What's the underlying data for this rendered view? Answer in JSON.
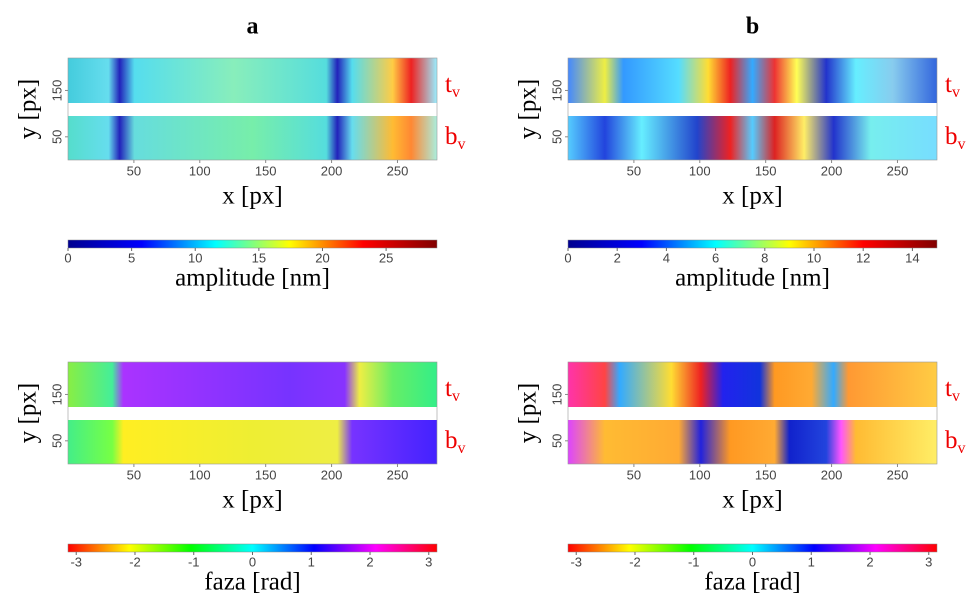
{
  "chart_data": [
    {
      "type": "heatmap",
      "title": "a",
      "xlabel": "x [px]",
      "ylabel": "y [px]",
      "xlim": [
        0,
        280
      ],
      "xticks": [
        50,
        100,
        150,
        200,
        250
      ],
      "ylim": [
        0,
        220
      ],
      "yticks": [
        50,
        150
      ],
      "band_labels": [
        {
          "text": "t",
          "sub": "v"
        },
        {
          "text": "b",
          "sub": "v"
        }
      ],
      "colorbar": {
        "label": "amplitude [nm]",
        "lim": [
          0,
          29
        ],
        "ticks": [
          0,
          5,
          10,
          15,
          20,
          25
        ],
        "colors": [
          "#00008f",
          "#0000ff",
          "#00ffff",
          "#ffff00",
          "#ff0000",
          "#800000"
        ]
      }
    },
    {
      "type": "heatmap",
      "title": "b",
      "xlabel": "x [px]",
      "ylabel": "y [px]",
      "xlim": [
        0,
        280
      ],
      "xticks": [
        50,
        100,
        150,
        200,
        250
      ],
      "ylim": [
        0,
        220
      ],
      "yticks": [
        50,
        150
      ],
      "band_labels": [
        {
          "text": "t",
          "sub": "v"
        },
        {
          "text": "b",
          "sub": "v"
        }
      ],
      "colorbar": {
        "label": "amplitude [nm]",
        "lim": [
          0,
          15
        ],
        "ticks": [
          0,
          2,
          4,
          6,
          8,
          10,
          12,
          14
        ],
        "colors": [
          "#00008f",
          "#0000ff",
          "#00ffff",
          "#ffff00",
          "#ff0000",
          "#800000"
        ]
      }
    },
    {
      "type": "heatmap",
      "xlabel": "x [px]",
      "ylabel": "y [px]",
      "xlim": [
        0,
        280
      ],
      "xticks": [
        50,
        100,
        150,
        200,
        250
      ],
      "ylim": [
        0,
        220
      ],
      "yticks": [
        50,
        150
      ],
      "band_labels": [
        {
          "text": "t",
          "sub": "v"
        },
        {
          "text": "b",
          "sub": "v"
        }
      ],
      "colorbar": {
        "label": "faza [rad]",
        "lim": [
          -3.14,
          3.14
        ],
        "ticks": [
          -3,
          -2,
          -1,
          0,
          1,
          2,
          3
        ],
        "colors": [
          "#ff0000",
          "#ffff00",
          "#00ff00",
          "#00ffff",
          "#0000ff",
          "#ff00ff",
          "#ff0000"
        ]
      }
    },
    {
      "type": "heatmap",
      "xlabel": "x [px]",
      "ylabel": "y [px]",
      "xlim": [
        0,
        280
      ],
      "xticks": [
        50,
        100,
        150,
        200,
        250
      ],
      "ylim": [
        0,
        220
      ],
      "yticks": [
        50,
        150
      ],
      "band_labels": [
        {
          "text": "t",
          "sub": "v"
        },
        {
          "text": "b",
          "sub": "v"
        }
      ],
      "colorbar": {
        "label": "faza [rad]",
        "lim": [
          -3.14,
          3.14
        ],
        "ticks": [
          -3,
          -2,
          -1,
          0,
          1,
          2,
          3
        ],
        "colors": [
          "#ff0000",
          "#ffff00",
          "#00ff00",
          "#00ffff",
          "#0000ff",
          "#ff00ff",
          "#ff0000"
        ]
      }
    }
  ]
}
